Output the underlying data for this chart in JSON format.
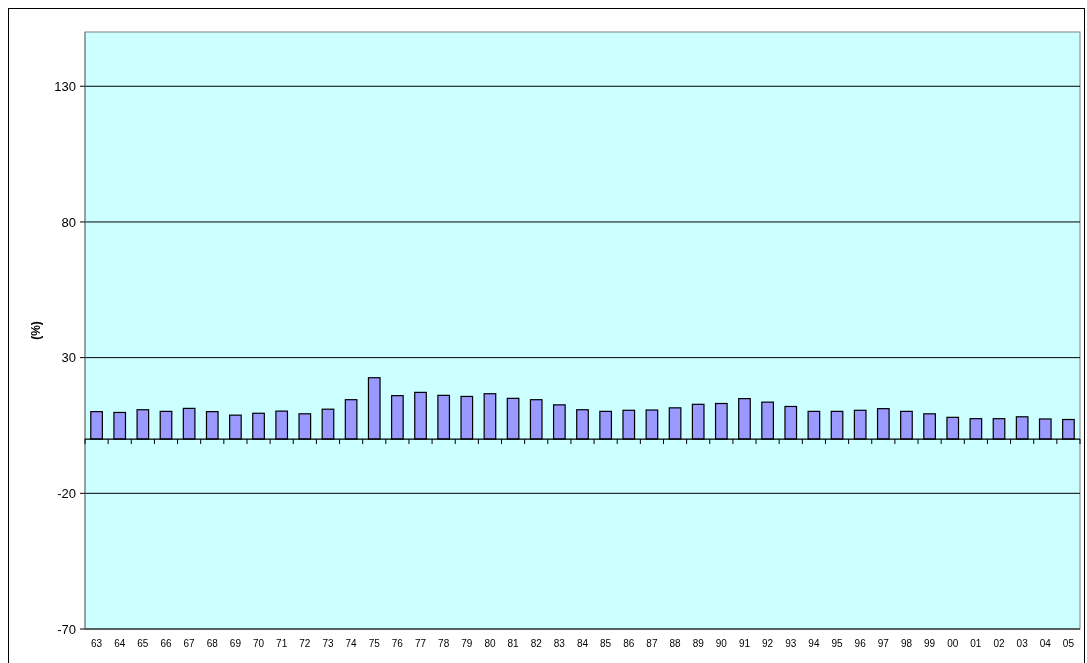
{
  "chart_data": {
    "type": "bar",
    "ylabel": "(%)",
    "categories": [
      "63",
      "64",
      "65",
      "66",
      "67",
      "68",
      "69",
      "70",
      "71",
      "72",
      "73",
      "74",
      "75",
      "76",
      "77",
      "78",
      "79",
      "80",
      "81",
      "82",
      "83",
      "84",
      "85",
      "86",
      "87",
      "88",
      "89",
      "90",
      "91",
      "92",
      "93",
      "94",
      "95",
      "96",
      "97",
      "98",
      "99",
      "00",
      "01",
      "02",
      "03",
      "04",
      "05"
    ],
    "values": [
      10.1,
      9.8,
      10.8,
      10.2,
      11.3,
      10.1,
      8.8,
      9.5,
      10.3,
      9.3,
      11.0,
      14.5,
      22.6,
      16.0,
      17.2,
      16.1,
      15.7,
      16.7,
      15.0,
      14.5,
      12.6,
      10.8,
      10.2,
      10.6,
      10.7,
      11.5,
      12.8,
      13.1,
      14.9,
      13.6,
      12.0,
      10.2,
      10.2,
      10.6,
      11.2,
      10.2,
      9.3,
      8.0,
      7.5,
      7.5,
      8.2,
      7.4,
      7.2
    ],
    "color": "#9999ff",
    "ylim": [
      -70,
      150
    ],
    "yticks": [
      -70,
      -20,
      30,
      80,
      130
    ],
    "grid": "y"
  }
}
